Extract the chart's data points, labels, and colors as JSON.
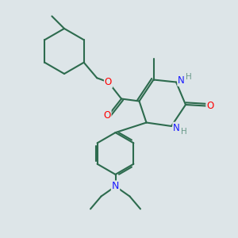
{
  "bg_color": "#dde5e8",
  "bond_color": "#2d6b4e",
  "bond_width": 1.5,
  "atom_colors": {
    "C": "#2d6b4e",
    "N": "#1a1aff",
    "O": "#ff0000",
    "H": "#6a9a8a"
  },
  "font_size": 8.5
}
